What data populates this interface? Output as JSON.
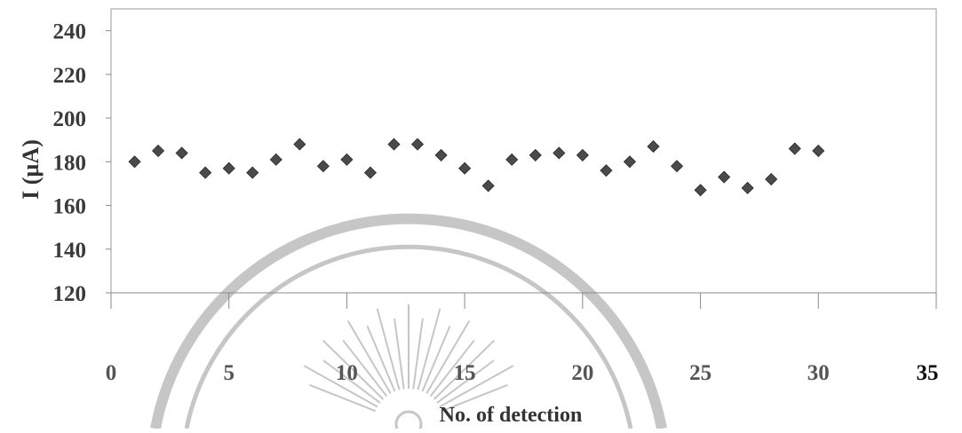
{
  "chart_data": {
    "type": "scatter",
    "title": "",
    "xlabel": "No. of detection",
    "ylabel": "I (µA)",
    "xlim": [
      0,
      35
    ],
    "ylim": [
      120,
      250
    ],
    "x_ticks": [
      "0",
      "5",
      "10",
      "15",
      "20",
      "25",
      "30",
      "35"
    ],
    "y_ticks": [
      "120",
      "140",
      "160",
      "180",
      "200",
      "220",
      "240"
    ],
    "grid": false,
    "legend": "none",
    "marker": "diamond",
    "marker_color": "#4a4a4a",
    "axis_color": "#8a8a8a",
    "series": [
      {
        "x": [
          1,
          2,
          3,
          4,
          5,
          6,
          7,
          8,
          9,
          10,
          11,
          12,
          13,
          14,
          15,
          16,
          17,
          18,
          19,
          20,
          21,
          22,
          23,
          24,
          25,
          26,
          27,
          28,
          29,
          30
        ],
        "y": [
          180,
          185,
          184,
          175,
          177,
          175,
          181,
          188,
          178,
          181,
          175,
          188,
          188,
          183,
          177,
          169,
          181,
          183,
          184,
          183,
          176,
          180,
          187,
          178,
          167,
          173,
          168,
          172,
          186,
          185
        ]
      }
    ]
  },
  "watermark": {
    "description": "circular university seal watermark"
  }
}
